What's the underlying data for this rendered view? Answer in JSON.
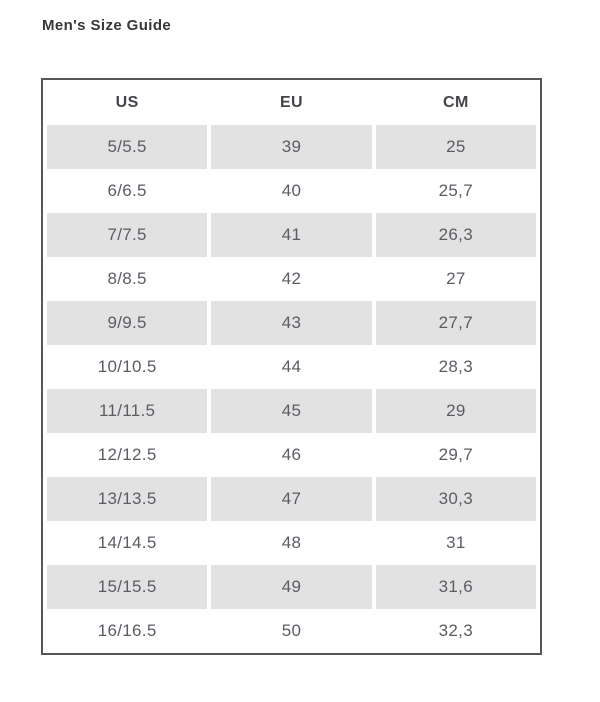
{
  "page": {
    "title": "Men's Size Guide"
  },
  "colors": {
    "stripe": "#e2e2e3",
    "table_border": "#55555a",
    "header_text": "#43454b",
    "cell_text": "#5b5d64",
    "title_text": "#37383c"
  },
  "size_table": {
    "columns": [
      "US",
      "EU",
      "CM"
    ],
    "rows": [
      [
        "5/5.5",
        "39",
        "25"
      ],
      [
        "6/6.5",
        "40",
        "25,7"
      ],
      [
        "7/7.5",
        "41",
        "26,3"
      ],
      [
        "8/8.5",
        "42",
        "27"
      ],
      [
        "9/9.5",
        "43",
        "27,7"
      ],
      [
        "10/10.5",
        "44",
        "28,3"
      ],
      [
        "11/11.5",
        "45",
        "29"
      ],
      [
        "12/12.5",
        "46",
        "29,7"
      ],
      [
        "13/13.5",
        "47",
        "30,3"
      ],
      [
        "14/14.5",
        "48",
        "31"
      ],
      [
        "15/15.5",
        "49",
        "31,6"
      ],
      [
        "16/16.5",
        "50",
        "32,3"
      ]
    ]
  }
}
